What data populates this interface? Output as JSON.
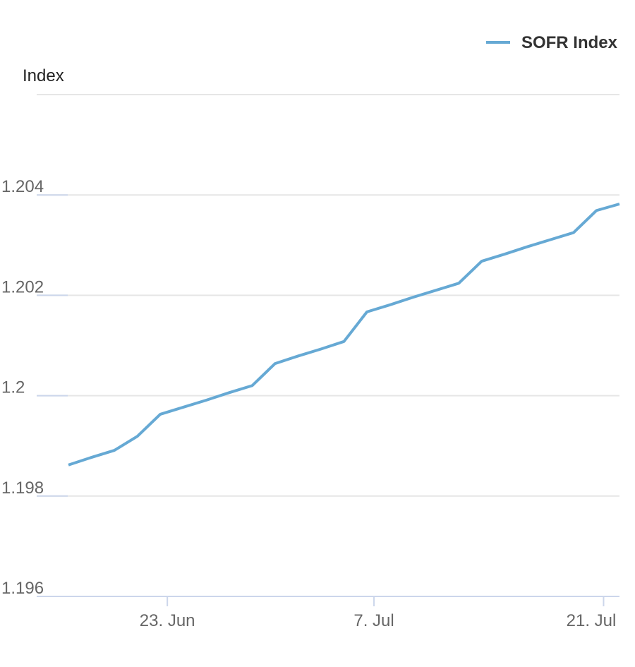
{
  "chart_data": {
    "type": "line",
    "y_axis_label": "Index",
    "categories": [
      null,
      null,
      null,
      null,
      "23. Jun",
      null,
      null,
      null,
      null,
      null,
      null,
      null,
      null,
      "7. Jul",
      null,
      null,
      null,
      null,
      null,
      null,
      null,
      null,
      null,
      "21. Jul",
      null
    ],
    "series": [
      {
        "name": "SOFR Index",
        "color": "#66a9d4",
        "values": [
          1.19862,
          1.19877,
          1.19891,
          1.19919,
          1.19963,
          1.19977,
          1.19991,
          1.20006,
          1.2002,
          1.20064,
          1.20079,
          1.20093,
          1.20108,
          1.20167,
          1.20181,
          1.20196,
          1.2021,
          1.20224,
          1.20268,
          1.20282,
          1.20297,
          1.20311,
          1.20325,
          1.20369,
          1.20382
        ]
      }
    ],
    "ylim": [
      1.196,
      1.206
    ],
    "yticks": [
      1.196,
      1.198,
      1.2,
      1.202,
      1.204
    ],
    "grid": true,
    "legend": "top-right"
  }
}
